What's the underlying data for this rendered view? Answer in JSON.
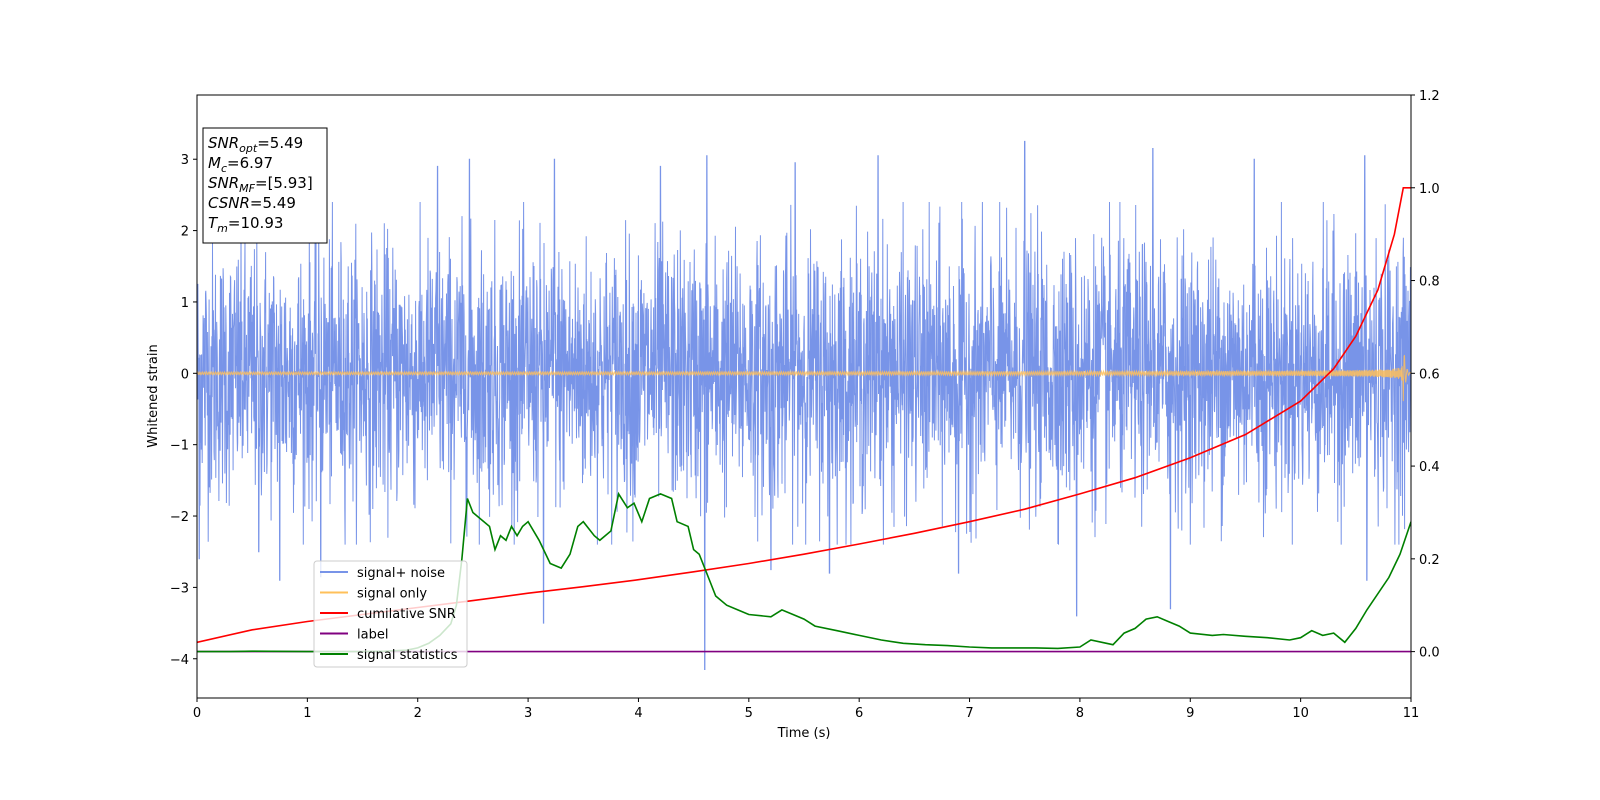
{
  "chart_data": {
    "type": "line",
    "xlabel": "Time (s)",
    "ylabel": "Whitened strain",
    "xlim": [
      0,
      11
    ],
    "ylim": [
      -4.55,
      3.9
    ],
    "y2lim": [
      -0.1,
      1.2
    ],
    "xticks": [
      0,
      1,
      2,
      3,
      4,
      5,
      6,
      7,
      8,
      9,
      10,
      11
    ],
    "yticks": [
      -4,
      -3,
      -2,
      -1,
      0,
      1,
      2,
      3
    ],
    "y2ticks": [
      "0.0",
      "0.2",
      "0.4",
      "0.6",
      "0.8",
      "1.0",
      "1.2"
    ],
    "grid": false,
    "legend_position": "lower-left",
    "annotation": {
      "lines": [
        {
          "var": "SNR",
          "sub": "opt",
          "value": "=5.49"
        },
        {
          "var": "M",
          "sub": "c",
          "value": "=6.97"
        },
        {
          "var": "SNR",
          "sub": "MF",
          "value": "=[5.93]"
        },
        {
          "var": "CSNR",
          "sub": "",
          "value": "=5.49"
        },
        {
          "var": "T",
          "sub": "m",
          "value": "=10.93"
        }
      ]
    },
    "series": [
      {
        "name": "signal+ noise",
        "axis": "left",
        "color": "#7894e8",
        "kind": "noise",
        "envelope_std": 0.9,
        "x_range": [
          0,
          11
        ],
        "spikes": [
          [
            0.02,
            -2.6
          ],
          [
            0.56,
            -2.5
          ],
          [
            0.75,
            -2.9
          ],
          [
            1.12,
            -2.85
          ],
          [
            2.18,
            2.9
          ],
          [
            2.47,
            3.0
          ],
          [
            3.14,
            -3.5
          ],
          [
            3.24,
            3.0
          ],
          [
            4.2,
            2.9
          ],
          [
            4.6,
            -4.15
          ],
          [
            4.62,
            3.05
          ],
          [
            5.2,
            -2.75
          ],
          [
            5.42,
            2.95
          ],
          [
            5.73,
            -2.8
          ],
          [
            6.17,
            3.05
          ],
          [
            6.9,
            -2.8
          ],
          [
            7.5,
            3.25
          ],
          [
            7.97,
            -3.4
          ],
          [
            8.66,
            3.15
          ],
          [
            8.82,
            -3.3
          ],
          [
            9.58,
            3.0
          ],
          [
            10.6,
            -2.9
          ],
          [
            10.58,
            3.05
          ]
        ]
      },
      {
        "name": "signal only",
        "axis": "left",
        "color": "#ffc05a",
        "kind": "chirp",
        "amplitude_start": 0.02,
        "amplitude_peak": 0.5,
        "t_merge": 10.93
      },
      {
        "name": "cumilative SNR",
        "axis": "right",
        "color": "#ff0000",
        "x": [
          0,
          0.5,
          1,
          1.5,
          2,
          2.5,
          3,
          3.5,
          4,
          4.5,
          5,
          5.5,
          6,
          6.5,
          7,
          7.5,
          8,
          8.5,
          9,
          9.5,
          10,
          10.3,
          10.5,
          10.7,
          10.85,
          10.93,
          11.0
        ],
        "values": [
          0.02,
          0.047,
          0.065,
          0.08,
          0.095,
          0.11,
          0.126,
          0.14,
          0.155,
          0.172,
          0.19,
          0.21,
          0.232,
          0.255,
          0.28,
          0.307,
          0.34,
          0.375,
          0.418,
          0.468,
          0.54,
          0.61,
          0.68,
          0.78,
          0.9,
          1.0,
          1.0
        ]
      },
      {
        "name": "label",
        "axis": "right",
        "color": "#800080",
        "x": [
          0,
          11
        ],
        "values": [
          0,
          0
        ]
      },
      {
        "name": "signal statistics",
        "axis": "right",
        "color": "#008000",
        "x": [
          0,
          0.3,
          0.5,
          1.0,
          1.5,
          1.7,
          1.9,
          2.0,
          2.1,
          2.2,
          2.3,
          2.35,
          2.4,
          2.45,
          2.5,
          2.55,
          2.65,
          2.7,
          2.75,
          2.8,
          2.85,
          2.9,
          2.95,
          3.0,
          3.1,
          3.2,
          3.3,
          3.38,
          3.45,
          3.5,
          3.6,
          3.65,
          3.75,
          3.82,
          3.9,
          3.96,
          4.03,
          4.1,
          4.2,
          4.3,
          4.35,
          4.45,
          4.5,
          4.55,
          4.6,
          4.65,
          4.7,
          4.8,
          4.9,
          5.0,
          5.2,
          5.3,
          5.4,
          5.5,
          5.6,
          5.8,
          6.0,
          6.2,
          6.4,
          6.6,
          6.8,
          7.0,
          7.2,
          7.4,
          7.6,
          7.8,
          8.0,
          8.1,
          8.3,
          8.4,
          8.5,
          8.6,
          8.7,
          8.8,
          8.9,
          9.0,
          9.2,
          9.3,
          9.5,
          9.7,
          9.9,
          10.0,
          10.1,
          10.2,
          10.3,
          10.4,
          10.5,
          10.6,
          10.8,
          10.9,
          11.0
        ],
        "values": [
          0.0,
          0.0,
          0.001,
          0.0,
          0.0,
          0.001,
          0.003,
          0.008,
          0.018,
          0.035,
          0.06,
          0.1,
          0.2,
          0.33,
          0.3,
          0.29,
          0.27,
          0.22,
          0.25,
          0.24,
          0.27,
          0.25,
          0.27,
          0.28,
          0.24,
          0.19,
          0.18,
          0.21,
          0.27,
          0.28,
          0.25,
          0.24,
          0.26,
          0.34,
          0.31,
          0.32,
          0.28,
          0.33,
          0.34,
          0.33,
          0.28,
          0.27,
          0.22,
          0.21,
          0.18,
          0.15,
          0.12,
          0.1,
          0.09,
          0.08,
          0.075,
          0.09,
          0.08,
          0.07,
          0.055,
          0.045,
          0.035,
          0.025,
          0.018,
          0.015,
          0.013,
          0.01,
          0.008,
          0.008,
          0.008,
          0.007,
          0.01,
          0.025,
          0.015,
          0.04,
          0.05,
          0.07,
          0.075,
          0.065,
          0.055,
          0.04,
          0.035,
          0.037,
          0.033,
          0.03,
          0.025,
          0.03,
          0.045,
          0.035,
          0.04,
          0.02,
          0.05,
          0.09,
          0.16,
          0.21,
          0.28
        ]
      }
    ]
  }
}
